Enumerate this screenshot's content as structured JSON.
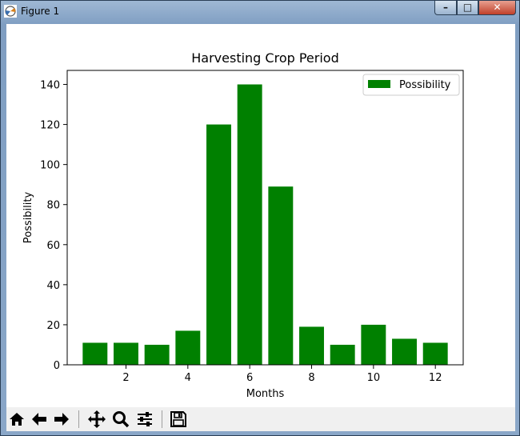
{
  "window": {
    "title": "Figure 1",
    "minimize_label": "–",
    "maximize_label": "□",
    "close_label": "✕"
  },
  "colors": {
    "bar": "#008000",
    "axes": "#000000"
  },
  "toolbar": {
    "buttons": [
      "home-icon",
      "back-icon",
      "forward-icon",
      "pan-icon",
      "zoom-icon",
      "configure-subplots-icon",
      "save-icon"
    ]
  },
  "chart_data": {
    "type": "bar",
    "title": "Harvesting Crop Period",
    "xlabel": "Months",
    "ylabel": "Possibility",
    "x": [
      1,
      2,
      3,
      4,
      5,
      6,
      7,
      8,
      9,
      10,
      11,
      12
    ],
    "series": [
      {
        "name": "Possibility",
        "values": [
          11,
          11,
          10,
          17,
          120,
          140,
          89,
          19,
          10,
          20,
          13,
          11
        ]
      }
    ],
    "xlim": [
      0.1,
      12.9
    ],
    "ylim": [
      0,
      147
    ],
    "xticks": [
      2,
      4,
      6,
      8,
      10,
      12
    ],
    "yticks": [
      0,
      20,
      40,
      60,
      80,
      100,
      120,
      140
    ],
    "legend_position": "top-right",
    "grid": false
  }
}
